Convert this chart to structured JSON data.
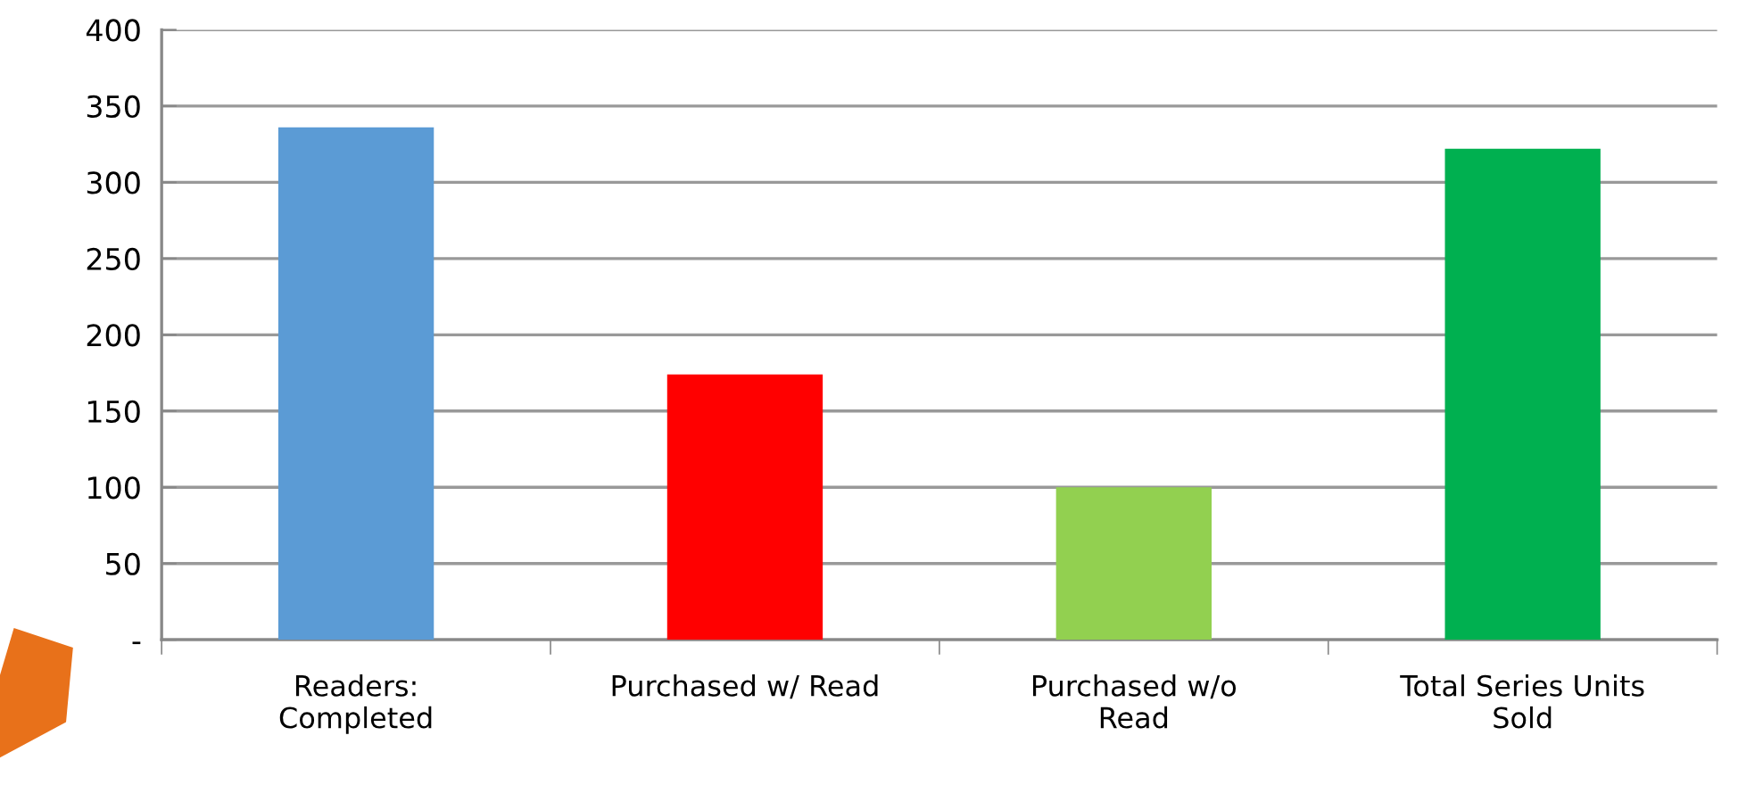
{
  "chart_data": {
    "type": "bar",
    "categories": [
      "Readers:\nCompleted",
      "Purchased w/ Read",
      "Purchased w/o\nRead",
      "Total Series Units\nSold"
    ],
    "values": [
      336,
      174,
      100,
      322
    ],
    "colors": [
      "#5b9bd5",
      "#ff0000",
      "#92d050",
      "#00b050"
    ],
    "ylim": [
      0,
      400
    ],
    "yticks": [
      {
        "value": 0,
        "label": "-"
      },
      50,
      100,
      150,
      200,
      250,
      300,
      350,
      400
    ],
    "grid": "y"
  }
}
